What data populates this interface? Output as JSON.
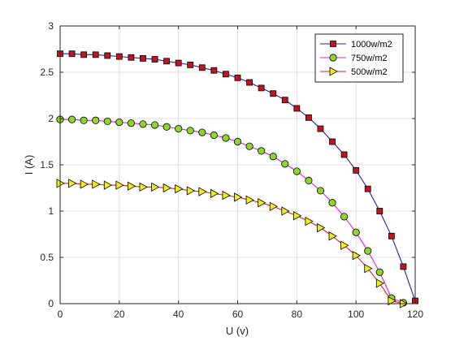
{
  "chart_data": {
    "type": "line",
    "title": "",
    "xlabel": "U (v)",
    "ylabel": "I (A)",
    "xlim": [
      0,
      120
    ],
    "ylim": [
      0,
      3
    ],
    "xticks": [
      0,
      20,
      40,
      60,
      80,
      100,
      120
    ],
    "yticks": [
      0,
      0.5,
      1,
      1.5,
      2,
      2.5,
      3
    ],
    "xtick_labels": [
      "0",
      "20",
      "40",
      "60",
      "80",
      "100",
      "120"
    ],
    "ytick_labels": [
      "0",
      "0.5",
      "1",
      "1.5",
      "2",
      "2.5",
      "3"
    ],
    "grid": true,
    "legend_position": "top-right",
    "series": [
      {
        "name": "1000w/m2",
        "line_color": "#1f1fb4",
        "marker": "square",
        "marker_face": "#c0141e",
        "x": [
          0,
          4,
          8,
          12,
          16,
          20,
          24,
          28,
          32,
          36,
          40,
          44,
          48,
          52,
          56,
          60,
          64,
          68,
          72,
          76,
          80,
          84,
          88,
          92,
          96,
          100,
          104,
          108,
          112,
          116,
          120
        ],
        "y": [
          2.7,
          2.7,
          2.69,
          2.69,
          2.68,
          2.67,
          2.66,
          2.65,
          2.64,
          2.62,
          2.6,
          2.58,
          2.55,
          2.52,
          2.48,
          2.44,
          2.39,
          2.33,
          2.27,
          2.2,
          2.11,
          2.01,
          1.89,
          1.75,
          1.61,
          1.44,
          1.24,
          1.0,
          0.73,
          0.4,
          0.03
        ]
      },
      {
        "name": "750w/m2",
        "line_color": "#e11ee1",
        "marker": "circle",
        "marker_face": "#8ed62a",
        "x": [
          0,
          4,
          8,
          12,
          16,
          20,
          24,
          28,
          32,
          36,
          40,
          44,
          48,
          52,
          56,
          60,
          64,
          68,
          72,
          76,
          80,
          84,
          88,
          92,
          96,
          100,
          104,
          108,
          112,
          116
        ],
        "y": [
          1.99,
          1.99,
          1.98,
          1.98,
          1.97,
          1.96,
          1.95,
          1.94,
          1.93,
          1.91,
          1.89,
          1.87,
          1.85,
          1.82,
          1.79,
          1.75,
          1.7,
          1.65,
          1.59,
          1.51,
          1.43,
          1.33,
          1.22,
          1.09,
          0.94,
          0.77,
          0.57,
          0.34,
          0.06,
          0.01
        ]
      },
      {
        "name": "500w/m2",
        "line_color": "#e01e1e",
        "marker": "triangle-right",
        "marker_face": "#f2ed18",
        "x": [
          0,
          4,
          8,
          12,
          16,
          20,
          24,
          28,
          32,
          36,
          40,
          44,
          48,
          52,
          56,
          60,
          64,
          68,
          72,
          76,
          80,
          84,
          88,
          92,
          96,
          100,
          104,
          108,
          112,
          116
        ],
        "y": [
          1.3,
          1.3,
          1.29,
          1.29,
          1.28,
          1.28,
          1.27,
          1.26,
          1.26,
          1.25,
          1.24,
          1.22,
          1.21,
          1.19,
          1.17,
          1.15,
          1.12,
          1.09,
          1.05,
          1.0,
          0.95,
          0.89,
          0.82,
          0.73,
          0.63,
          0.52,
          0.38,
          0.22,
          0.03,
          0.0
        ]
      }
    ]
  }
}
